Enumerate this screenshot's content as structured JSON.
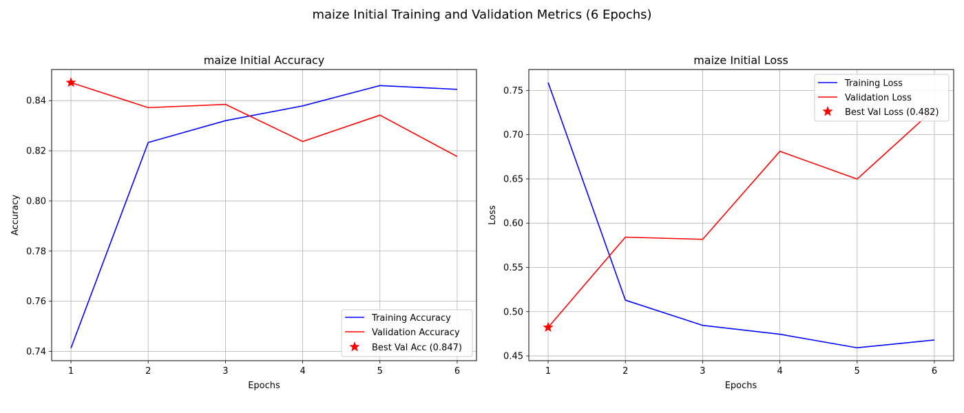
{
  "figure": {
    "suptitle": "maize Initial Training and Validation Metrics (6 Epochs)"
  },
  "chart_data": [
    {
      "type": "line",
      "title": "maize Initial Accuracy",
      "xlabel": "Epochs",
      "ylabel": "Accuracy",
      "x": [
        1,
        2,
        3,
        4,
        5,
        6
      ],
      "xticks": [
        "1",
        "2",
        "3",
        "4",
        "5",
        "6"
      ],
      "xlim": [
        0.75,
        6.25
      ],
      "ylim": [
        0.7363,
        0.8524
      ],
      "yticks": [
        "0.74",
        "0.76",
        "0.78",
        "0.80",
        "0.82",
        "0.84"
      ],
      "grid": true,
      "legend_position": "lower right",
      "series": [
        {
          "name": "Training Accuracy",
          "color": "#0000ff",
          "values": [
            0.7413,
            0.8233,
            0.832,
            0.8379,
            0.846,
            0.8445
          ]
        },
        {
          "name": "Validation Accuracy",
          "color": "#ff0000",
          "values": [
            0.8472,
            0.8372,
            0.8385,
            0.8237,
            0.8342,
            0.8177
          ]
        }
      ],
      "best": {
        "name": "Best Val Acc (0.847)",
        "x": 1,
        "y": 0.8472,
        "color": "#ff0000",
        "marker": "star"
      }
    },
    {
      "type": "line",
      "title": "maize Initial Loss",
      "xlabel": "Epochs",
      "ylabel": "Loss",
      "x": [
        1,
        2,
        3,
        4,
        5,
        6
      ],
      "xticks": [
        "1",
        "2",
        "3",
        "4",
        "5",
        "6"
      ],
      "xlim": [
        0.75,
        6.25
      ],
      "ylim": [
        0.4446,
        0.7736
      ],
      "yticks": [
        "0.45",
        "0.50",
        "0.55",
        "0.60",
        "0.65",
        "0.70",
        "0.75"
      ],
      "grid": true,
      "legend_position": "upper right",
      "series": [
        {
          "name": "Training Loss",
          "color": "#0000ff",
          "values": [
            0.7589,
            0.513,
            0.4845,
            0.4745,
            0.4592,
            0.468
          ]
        },
        {
          "name": "Validation Loss",
          "color": "#ff0000",
          "values": [
            0.4822,
            0.5842,
            0.5817,
            0.6812,
            0.6498,
            0.729
          ]
        }
      ],
      "best": {
        "name": "Best Val Loss (0.482)",
        "x": 1,
        "y": 0.4822,
        "color": "#ff0000",
        "marker": "star"
      }
    }
  ]
}
